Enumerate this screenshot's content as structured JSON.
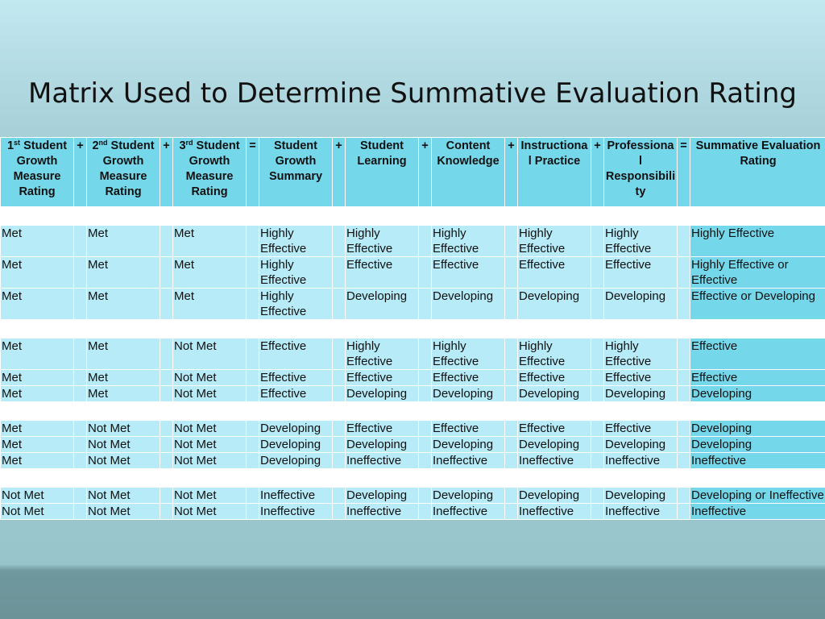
{
  "title": "Matrix Used to Determine Summative Evaluation Rating",
  "columns": [
    {
      "num": "1",
      "sup": "st",
      "label": " Student Growth Measure Rating"
    },
    {
      "op": "+"
    },
    {
      "num": "2",
      "sup": "nd",
      "label": " Student Growth Measure Rating"
    },
    {
      "op": "+"
    },
    {
      "num": "3",
      "sup": "rd",
      "label": " Student Growth Measure Rating"
    },
    {
      "op": "="
    },
    {
      "label": "Student Growth Summary"
    },
    {
      "op": "+"
    },
    {
      "label": "Student Learning"
    },
    {
      "op": "+"
    },
    {
      "label": "Content Knowledge"
    },
    {
      "op": "+"
    },
    {
      "label": "Instructiona l Practice"
    },
    {
      "op": "+"
    },
    {
      "label": "Professiona l Responsibili ty"
    },
    {
      "op": "="
    },
    {
      "label": "Summative Evaluation Rating"
    }
  ],
  "groups": [
    [
      [
        "Met",
        "Met",
        "Met",
        "Highly Effective",
        "Highly Effective",
        "Highly Effective",
        "Highly Effective",
        "Highly Effective",
        "Highly Effective"
      ],
      [
        "Met",
        "Met",
        "Met",
        "Highly Effective",
        "Effective",
        "Effective",
        "Effective",
        "Effective",
        "Highly Effective or Effective"
      ],
      [
        "Met",
        "Met",
        "Met",
        "Highly Effective",
        "Developing",
        "Developing",
        "Developing",
        "Developing",
        "Effective or Developing"
      ]
    ],
    [
      [
        "Met",
        "Met",
        "Not Met",
        "Effective",
        "Highly Effective",
        "Highly Effective",
        "Highly Effective",
        "Highly Effective",
        "Effective"
      ],
      [
        "Met",
        "Met",
        "Not Met",
        "Effective",
        "Effective",
        "Effective",
        "Effective",
        "Effective",
        "Effective"
      ],
      [
        "Met",
        "Met",
        "Not Met",
        "Effective",
        "Developing",
        "Developing",
        "Developing",
        "Developing",
        "Developing"
      ]
    ],
    [
      [
        "Met",
        "Not Met",
        "Not Met",
        "Developing",
        "Effective",
        "Effective",
        "Effective",
        "Effective",
        "Developing"
      ],
      [
        "Met",
        "Not Met",
        "Not Met",
        "Developing",
        "Developing",
        "Developing",
        "Developing",
        "Developing",
        "Developing"
      ],
      [
        "Met",
        "Not Met",
        "Not Met",
        "Developing",
        "Ineffective",
        "Ineffective",
        "Ineffective",
        "Ineffective",
        "Ineffective"
      ]
    ],
    [
      [
        "Not Met",
        "Not Met",
        "Not Met",
        "Ineffective",
        "Developing",
        "Developing",
        "Developing",
        "Developing",
        "Developing or Ineffective"
      ],
      [
        "Not Met",
        "Not Met",
        "Not Met",
        "Ineffective",
        "Ineffective",
        "Ineffective",
        "Ineffective",
        "Ineffective",
        "Ineffective"
      ]
    ]
  ],
  "colors": {
    "header_bg": "#75d7ea",
    "row_bg": "#b6ebf7",
    "rating_bg": "#75d7ea",
    "separator": "#ffffff"
  }
}
